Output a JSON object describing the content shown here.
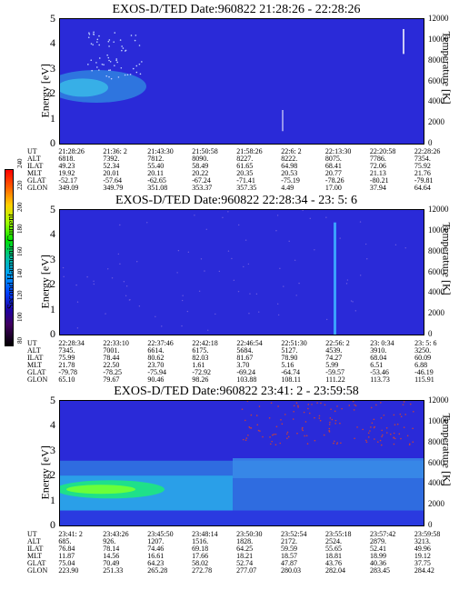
{
  "colorbar": {
    "label": "Second Harmonic Current",
    "ticks": [
      "80",
      "100",
      "120",
      "140",
      "160",
      "180",
      "200",
      "220",
      "240"
    ]
  },
  "chart_data": [
    {
      "type": "heatmap",
      "title": "EXOS-D/TED   Date:960822  21:28:26 - 22:28:26",
      "ylabel": "Energy [eV]",
      "ylabel_right": "Temperature [K]",
      "ylim": [
        0,
        5
      ],
      "yticks": [
        "0",
        "1",
        "2",
        "3",
        "4",
        "5"
      ],
      "ylim_right": [
        0,
        12000
      ],
      "yticks_right": [
        "0",
        "2000",
        "4000",
        "6000",
        "8000",
        "10000",
        "12000"
      ],
      "info_rows": [
        {
          "label": "UT",
          "values": [
            "21:28:26",
            "21:36: 2",
            "21:43:30",
            "21:50:58",
            "21:58:26",
            "22:6: 2",
            "22:13:30",
            "22:20:58",
            "22:28:26"
          ]
        },
        {
          "label": "ALT",
          "values": [
            "6818.",
            "7392.",
            "7812.",
            "8090.",
            "8227.",
            "8222.",
            "8075.",
            "7786.",
            "7354."
          ]
        },
        {
          "label": "ILAT",
          "values": [
            "49.23",
            "52.34",
            "55.40",
            "58.49",
            "61.65",
            "64.98",
            "68.41",
            "72.06",
            "75.92"
          ]
        },
        {
          "label": "MLT",
          "values": [
            "19.92",
            "20.01",
            "20.11",
            "20.22",
            "20.35",
            "20.53",
            "20.77",
            "21.13",
            "21.76"
          ]
        },
        {
          "label": "GLAT",
          "values": [
            "-52.17",
            "-57.64",
            "-62.65",
            "-67.24",
            "-71.41",
            "-75.19",
            "-78.26",
            "-80.21",
            "-79.81"
          ]
        },
        {
          "label": "GLON",
          "values": [
            "349.09",
            "349.79",
            "351.08",
            "353.37",
            "357.35",
            "4.49",
            "17.00",
            "37.94",
            "64.64"
          ]
        }
      ]
    },
    {
      "type": "heatmap",
      "title": "EXOS-D/TED   Date:960822  22:28:34 - 23: 5: 6",
      "ylabel": "Energy [eV]",
      "ylabel_right": "Temperature [K]",
      "ylim": [
        0,
        5
      ],
      "yticks": [
        "0",
        "1",
        "2",
        "3",
        "4",
        "5"
      ],
      "ylim_right": [
        0,
        12000
      ],
      "yticks_right": [
        "0",
        "2000",
        "4000",
        "6000",
        "8000",
        "10000",
        "12000"
      ],
      "info_rows": [
        {
          "label": "UT",
          "values": [
            "22:28:34",
            "22:33:10",
            "22:37:46",
            "22:42:18",
            "22:46:54",
            "22:51:30",
            "22:56: 2",
            "23: 0:34",
            "23: 5: 6"
          ]
        },
        {
          "label": "ALT",
          "values": [
            "7345.",
            "7001.",
            "6614.",
            "6175.",
            "5684.",
            "5127.",
            "4539.",
            "3910.",
            "3250."
          ]
        },
        {
          "label": "ILAT",
          "values": [
            "75.99",
            "78.44",
            "80.62",
            "82.03",
            "81.67",
            "78.90",
            "74.27",
            "68.04",
            "60.09"
          ]
        },
        {
          "label": "MLT",
          "values": [
            "21.78",
            "22.50",
            "23.70",
            "1.61",
            "3.70",
            "5.16",
            "5.99",
            "6.51",
            "6.88"
          ]
        },
        {
          "label": "GLAT",
          "values": [
            "-79.78",
            "-78.25",
            "-75.94",
            "-72.92",
            "-69.24",
            "-64.74",
            "-59.57",
            "-53.46",
            "-46.19"
          ]
        },
        {
          "label": "GLON",
          "values": [
            "65.10",
            "79.67",
            "90.46",
            "98.26",
            "103.88",
            "108.11",
            "111.22",
            "113.73",
            "115.91"
          ]
        }
      ]
    },
    {
      "type": "heatmap",
      "title": "EXOS-D/TED   Date:960822  23:41: 2 - 23:59:58",
      "ylabel": "Energy [eV]",
      "ylabel_right": "Temperature [K]",
      "ylim": [
        0,
        5
      ],
      "yticks": [
        "0",
        "1",
        "2",
        "3",
        "4",
        "5"
      ],
      "ylim_right": [
        0,
        12000
      ],
      "yticks_right": [
        "0",
        "2000",
        "4000",
        "6000",
        "8000",
        "10000",
        "12000"
      ],
      "info_rows": [
        {
          "label": "UT",
          "values": [
            "23:41: 2",
            "23:43:26",
            "23:45:50",
            "23:48:14",
            "23:50:30",
            "23:52:54",
            "23:55:18",
            "23:57:42",
            "23:59:58"
          ]
        },
        {
          "label": "ALT",
          "values": [
            "685.",
            "926.",
            "1207.",
            "1516.",
            "1828.",
            "2172.",
            "2524.",
            "2879.",
            "3213."
          ]
        },
        {
          "label": "ILAT",
          "values": [
            "76.84",
            "78.14",
            "74.46",
            "69.18",
            "64.25",
            "59.59",
            "55.65",
            "52.41",
            "49.96"
          ]
        },
        {
          "label": "MLT",
          "values": [
            "11.87",
            "14.56",
            "16.61",
            "17.66",
            "18.21",
            "18.57",
            "18.81",
            "18.99",
            "19.12"
          ]
        },
        {
          "label": "GLAT",
          "values": [
            "75.04",
            "70.49",
            "64.23",
            "58.02",
            "52.74",
            "47.87",
            "43.76",
            "40.36",
            "37.75"
          ]
        },
        {
          "label": "GLON",
          "values": [
            "223.90",
            "251.33",
            "265.28",
            "272.78",
            "277.07",
            "280.03",
            "282.04",
            "283.45",
            "284.42"
          ]
        }
      ]
    }
  ]
}
